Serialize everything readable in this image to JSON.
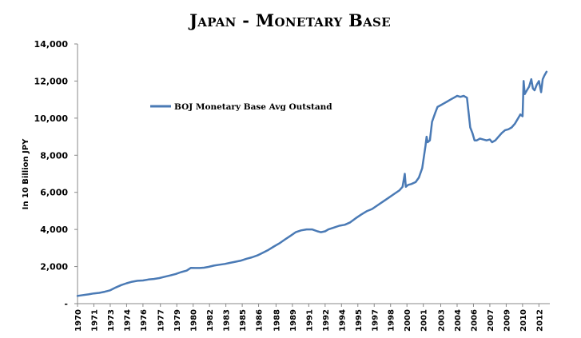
{
  "chart_data": {
    "type": "line",
    "title": "Japan - Monetary Base",
    "ylabel": "In 10 Billion JPY",
    "xlabel": "",
    "ylim": [
      0,
      14000
    ],
    "y_ticks": [
      {
        "value": 0,
        "label": "-"
      },
      {
        "value": 2000,
        "label": "2,000"
      },
      {
        "value": 4000,
        "label": "4,000"
      },
      {
        "value": 6000,
        "label": "6,000"
      },
      {
        "value": 8000,
        "label": "8,000"
      },
      {
        "value": 10000,
        "label": "10,000"
      },
      {
        "value": 12000,
        "label": "12,000"
      },
      {
        "value": 14000,
        "label": "14,000"
      }
    ],
    "xlim": [
      1970,
      2013.3
    ],
    "x_tick_labels": [
      {
        "value": 1970.0,
        "label": "1970"
      },
      {
        "value": 1971.5,
        "label": "1971"
      },
      {
        "value": 1973.0,
        "label": "1973"
      },
      {
        "value": 1974.5,
        "label": "1974"
      },
      {
        "value": 1976.0,
        "label": "1976"
      },
      {
        "value": 1977.6,
        "label": "1977"
      },
      {
        "value": 1979.1,
        "label": "1979"
      },
      {
        "value": 1980.6,
        "label": "1980"
      },
      {
        "value": 1982.1,
        "label": "1982"
      },
      {
        "value": 1983.6,
        "label": "1983"
      },
      {
        "value": 1985.1,
        "label": "1985"
      },
      {
        "value": 1986.6,
        "label": "1986"
      },
      {
        "value": 1988.2,
        "label": "1988"
      },
      {
        "value": 1989.7,
        "label": "1989"
      },
      {
        "value": 1991.2,
        "label": "1991"
      },
      {
        "value": 1992.7,
        "label": "1992"
      },
      {
        "value": 1994.2,
        "label": "1994"
      },
      {
        "value": 1995.7,
        "label": "1995"
      },
      {
        "value": 1997.2,
        "label": "1997"
      },
      {
        "value": 1998.7,
        "label": "1998"
      },
      {
        "value": 2000.2,
        "label": "2000"
      },
      {
        "value": 2001.7,
        "label": "2001"
      },
      {
        "value": 2003.3,
        "label": "2003"
      },
      {
        "value": 2004.8,
        "label": "2004"
      },
      {
        "value": 2006.3,
        "label": "2006"
      },
      {
        "value": 2007.8,
        "label": "2007"
      },
      {
        "value": 2009.3,
        "label": "2009"
      },
      {
        "value": 2010.8,
        "label": "2010"
      },
      {
        "value": 2012.3,
        "label": "2012"
      }
    ],
    "grid": false,
    "legend_position": "top-left",
    "series": [
      {
        "name": "BOJ Monetary Base Avg Outstand",
        "color": "#4a7ab5",
        "x": [
          1970.0,
          1970.5,
          1971.0,
          1971.5,
          1972.0,
          1972.5,
          1973.0,
          1973.5,
          1974.0,
          1974.5,
          1975.0,
          1975.5,
          1976.0,
          1976.5,
          1977.0,
          1977.5,
          1978.0,
          1978.5,
          1979.0,
          1979.5,
          1980.0,
          1980.4,
          1980.8,
          1981.2,
          1981.6,
          1982.0,
          1982.5,
          1983.0,
          1983.5,
          1984.0,
          1984.5,
          1985.0,
          1985.5,
          1986.0,
          1986.5,
          1987.0,
          1987.5,
          1988.0,
          1988.5,
          1989.0,
          1989.5,
          1990.0,
          1990.5,
          1991.0,
          1991.5,
          1992.0,
          1992.3,
          1992.7,
          1993.0,
          1993.5,
          1994.0,
          1994.5,
          1995.0,
          1995.5,
          1996.0,
          1996.5,
          1997.0,
          1997.5,
          1998.0,
          1998.5,
          1999.0,
          1999.5,
          1999.8,
          2000.0,
          2000.1,
          2000.3,
          2000.6,
          2001.0,
          2001.3,
          2001.6,
          2001.9,
          2002.0,
          2002.1,
          2002.3,
          2002.5,
          2002.8,
          2003.0,
          2003.3,
          2003.6,
          2003.9,
          2004.2,
          2004.5,
          2004.8,
          2005.1,
          2005.4,
          2005.7,
          2006.0,
          2006.2,
          2006.4,
          2006.6,
          2006.9,
          2007.2,
          2007.5,
          2007.8,
          2008.0,
          2008.3,
          2008.6,
          2008.9,
          2009.2,
          2009.5,
          2009.8,
          2010.1,
          2010.4,
          2010.6,
          2010.8,
          2010.9,
          2011.0,
          2011.2,
          2011.4,
          2011.6,
          2011.75,
          2011.9,
          2012.1,
          2012.3,
          2012.5,
          2012.65,
          2012.8,
          2013.0
        ],
        "y": [
          420,
          460,
          500,
          550,
          580,
          640,
          720,
          870,
          1000,
          1100,
          1180,
          1230,
          1250,
          1300,
          1330,
          1380,
          1450,
          1520,
          1600,
          1700,
          1780,
          1930,
          1920,
          1920,
          1940,
          1980,
          2050,
          2100,
          2140,
          2200,
          2260,
          2320,
          2420,
          2500,
          2600,
          2750,
          2900,
          3080,
          3250,
          3450,
          3650,
          3850,
          3950,
          4000,
          4000,
          3900,
          3850,
          3900,
          4000,
          4100,
          4200,
          4250,
          4380,
          4600,
          4800,
          4980,
          5100,
          5300,
          5500,
          5700,
          5900,
          6100,
          6300,
          7000,
          6300,
          6400,
          6450,
          6550,
          6800,
          7300,
          8500,
          9000,
          8700,
          8800,
          9800,
          10300,
          10600,
          10700,
          10800,
          10900,
          11000,
          11100,
          11200,
          11150,
          11200,
          11100,
          9500,
          9200,
          8800,
          8800,
          8900,
          8850,
          8800,
          8850,
          8700,
          8800,
          9000,
          9200,
          9350,
          9400,
          9500,
          9700,
          10000,
          10200,
          10100,
          12000,
          11300,
          11500,
          11700,
          12100,
          11600,
          11500,
          11800,
          12000,
          11400,
          12100,
          12300,
          12500
        ]
      }
    ]
  }
}
